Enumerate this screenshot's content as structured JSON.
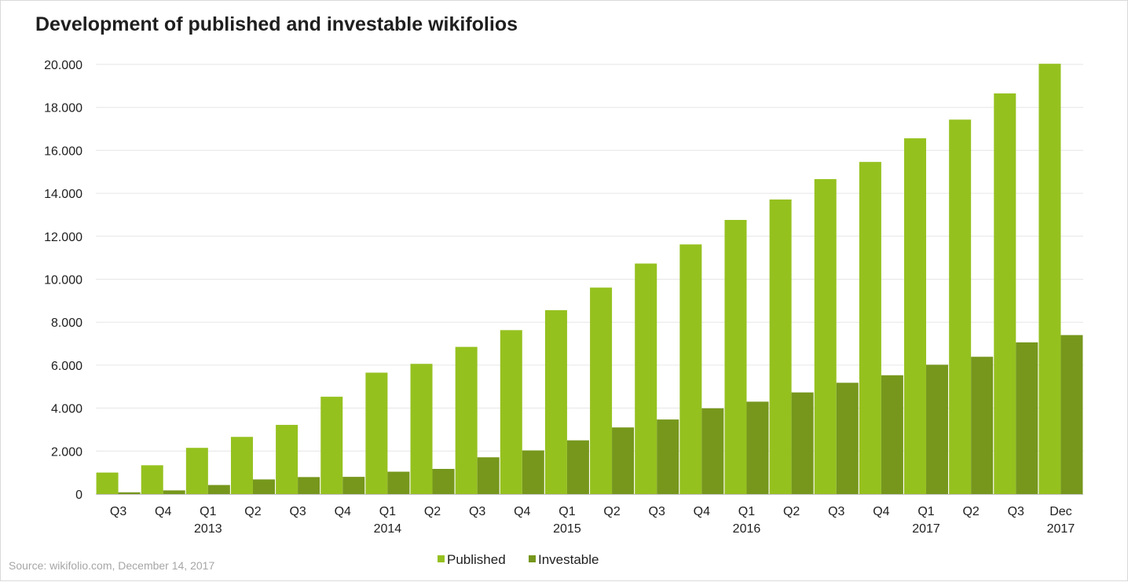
{
  "colors": {
    "published": "#95c11f",
    "investable": "#76971c",
    "grid": "#e6e6e6",
    "axis": "#bfbfbf"
  },
  "source_note": "Source: wikifolio.com,  December 14, 2017",
  "chart_data": {
    "type": "bar",
    "title": "Development of published and investable wikifolios",
    "xlabel": "",
    "ylabel": "",
    "ylim": [
      0,
      20000
    ],
    "yticks": [
      "0",
      "2.000",
      "4.000",
      "6.000",
      "8.000",
      "10.000",
      "12.000",
      "14.000",
      "16.000",
      "18.000",
      "20.000"
    ],
    "grid": true,
    "legend_position": "bottom",
    "categories": [
      [
        "Q3"
      ],
      [
        "Q4"
      ],
      [
        "Q1",
        "2013"
      ],
      [
        "Q2"
      ],
      [
        "Q3"
      ],
      [
        "Q4"
      ],
      [
        "Q1",
        "2014"
      ],
      [
        "Q2"
      ],
      [
        "Q3"
      ],
      [
        "Q4"
      ],
      [
        "Q1",
        "2015"
      ],
      [
        "Q2"
      ],
      [
        "Q3"
      ],
      [
        "Q4"
      ],
      [
        "Q1",
        "2016"
      ],
      [
        "Q2"
      ],
      [
        "Q3"
      ],
      [
        "Q4"
      ],
      [
        "Q1",
        "2017"
      ],
      [
        "Q2"
      ],
      [
        "Q3"
      ],
      [
        "Dec",
        "2017"
      ]
    ],
    "series": [
      {
        "name": "Published",
        "color": "#95c11f",
        "values": [
          1000,
          1340,
          2150,
          2660,
          3220,
          4530,
          5650,
          6060,
          6850,
          7630,
          8560,
          9610,
          10730,
          11620,
          12760,
          13710,
          14660,
          15460,
          16560,
          17430,
          18650,
          20030
        ]
      },
      {
        "name": "Investable",
        "color": "#76971c",
        "values": [
          80,
          170,
          420,
          680,
          790,
          800,
          1040,
          1170,
          1710,
          2030,
          2500,
          3100,
          3470,
          3990,
          4300,
          4730,
          5180,
          5530,
          6020,
          6390,
          7060,
          7400
        ]
      }
    ]
  }
}
